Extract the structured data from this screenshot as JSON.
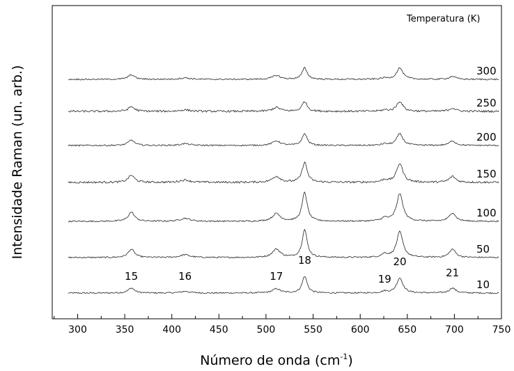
{
  "chart_data": {
    "type": "line",
    "title": "",
    "xlabel": "Número de onda (cm",
    "xlabel_sup": "-1",
    "xlabel_end": ")",
    "ylabel": "Intensidade Raman (un. arb.)",
    "legend_title": "Temperatura (K)",
    "xlim": [
      273,
      750
    ],
    "xticks": [
      300,
      350,
      400,
      450,
      500,
      550,
      600,
      650,
      700,
      750
    ],
    "y_scale": "arbitrary (stacked, offset per temperature)",
    "grid": false,
    "peaks": [
      {
        "label": "15",
        "position": 357
      },
      {
        "label": "16",
        "position": 414
      },
      {
        "label": "17",
        "position": 511
      },
      {
        "label": "18",
        "position": 541
      },
      {
        "label": "19",
        "position": 626
      },
      {
        "label": "20",
        "position": 642
      },
      {
        "label": "21",
        "position": 698
      }
    ],
    "series": [
      {
        "name": "10",
        "amplitudes": [
          0.3,
          0.1,
          0.25,
          1.0,
          0.1,
          0.9,
          0.3
        ]
      },
      {
        "name": "50",
        "amplitudes": [
          0.3,
          0.1,
          0.3,
          1.0,
          0.12,
          0.92,
          0.3
        ]
      },
      {
        "name": "100",
        "amplitudes": [
          0.3,
          0.1,
          0.25,
          0.95,
          0.1,
          0.9,
          0.28
        ]
      },
      {
        "name": "150",
        "amplitudes": [
          0.3,
          0.1,
          0.25,
          0.85,
          0.1,
          0.8,
          0.25
        ]
      },
      {
        "name": "200",
        "amplitudes": [
          0.3,
          0.1,
          0.25,
          0.65,
          0.08,
          0.65,
          0.25
        ]
      },
      {
        "name": "250",
        "amplitudes": [
          0.3,
          0.1,
          0.25,
          0.65,
          0.08,
          0.65,
          0.22
        ]
      },
      {
        "name": "300",
        "amplitudes": [
          0.3,
          0.1,
          0.25,
          0.75,
          0.08,
          0.75,
          0.2
        ]
      }
    ]
  }
}
